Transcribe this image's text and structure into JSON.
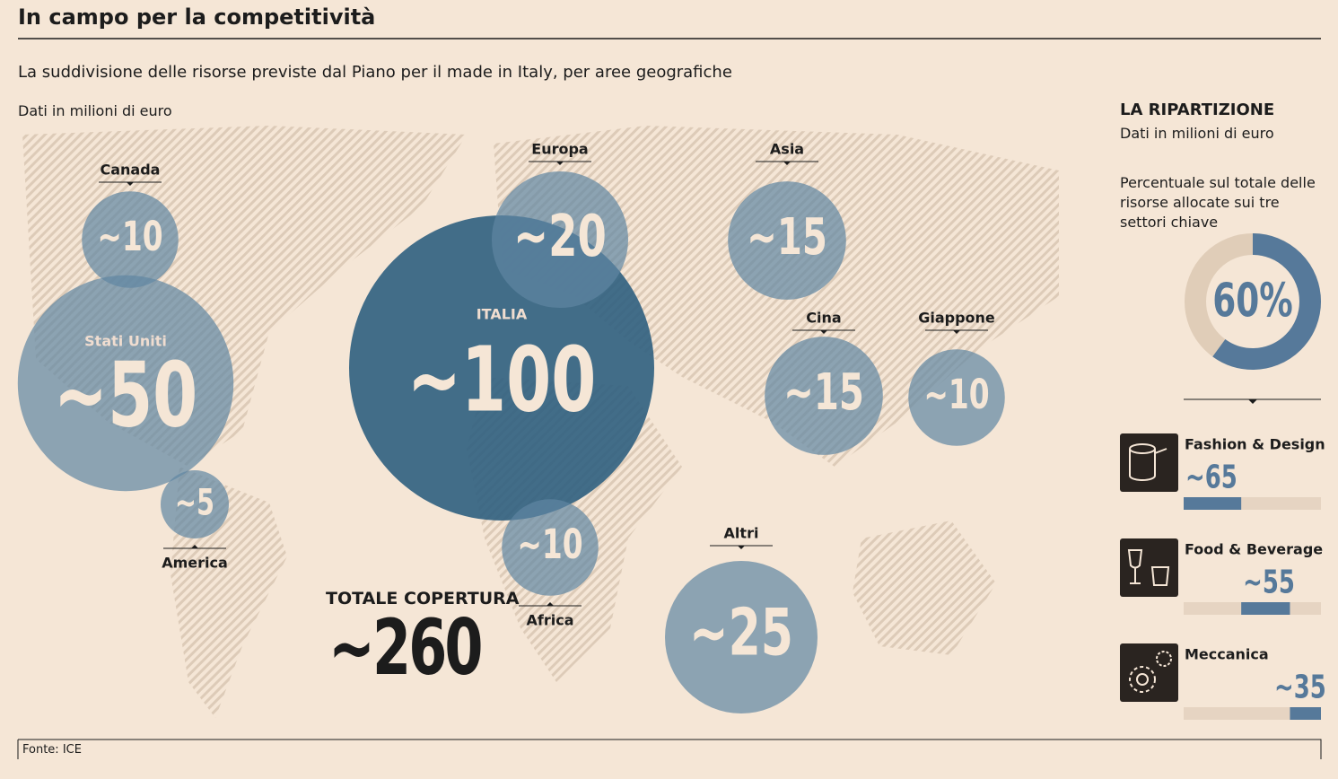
{
  "header": {
    "title": "In campo per la competitività",
    "subtitle": "La suddivisione delle risorse previste dal Piano per il made in Italy, per aree geografiche",
    "unit_note": "Dati in milioni di euro"
  },
  "regions": [
    {
      "name": "Canada",
      "value": 10,
      "label": "~10"
    },
    {
      "name": "Stati Uniti",
      "value": 50,
      "label": "~50"
    },
    {
      "name": "America",
      "value": 5,
      "label": "~5"
    },
    {
      "name": "Europa",
      "value": 20,
      "label": "~20"
    },
    {
      "name": "ITALIA",
      "value": 100,
      "label": "~100"
    },
    {
      "name": "Africa",
      "value": 10,
      "label": "~10"
    },
    {
      "name": "Asia",
      "value": 15,
      "label": "~15"
    },
    {
      "name": "Cina",
      "value": 15,
      "label": "~15"
    },
    {
      "name": "Giappone",
      "value": 10,
      "label": "~10"
    },
    {
      "name": "Altri",
      "value": 25,
      "label": "~25"
    }
  ],
  "total": {
    "title": "TOTALE COPERTURA",
    "value": 260,
    "label": "~260"
  },
  "breakdown": {
    "title": "LA RIPARTIZIONE",
    "unit_note": "Dati in milioni di euro",
    "description": "Percentuale sul totale delle risorse allocate sui tre settori chiave",
    "share": {
      "value": 60,
      "label": "60%"
    },
    "sectors": [
      {
        "name": "Fashion & Design",
        "value": 65,
        "label": "~65"
      },
      {
        "name": "Food & Beverage",
        "value": 55,
        "label": "~55"
      },
      {
        "name": "Meccanica",
        "value": 35,
        "label": "~35"
      }
    ]
  },
  "footer": {
    "source": "Fonte: ICE"
  }
}
